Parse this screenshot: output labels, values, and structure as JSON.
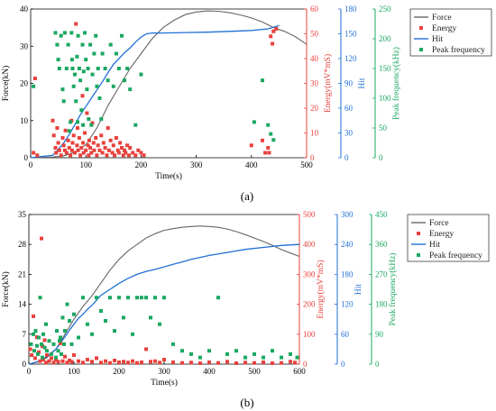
{
  "colors": {
    "force": "#666666",
    "energy": "#e8413c",
    "hit": "#1f6fd6",
    "peak": "#1aa860",
    "axis": "#000000"
  },
  "legend_labels": [
    "Force",
    "Energy",
    "Hit",
    "Peak frequency"
  ],
  "chart_data": [
    {
      "type": "scatter",
      "panel_label": "(a)",
      "xlabel": "Time(s)",
      "xlim": [
        0,
        500
      ],
      "xticks": [
        0,
        100,
        200,
        300,
        400,
        500
      ],
      "axes": {
        "force": {
          "label": "Force(kN)",
          "lim": [
            0,
            40
          ],
          "ticks": [
            0,
            10,
            20,
            30,
            40
          ]
        },
        "energy": {
          "label": "Energy(mV*mS)",
          "lim": [
            0,
            60
          ],
          "ticks": [
            0,
            10,
            20,
            30,
            40,
            50,
            60
          ]
        },
        "hit": {
          "label": "Hit",
          "lim": [
            0,
            180
          ],
          "ticks": [
            0,
            30,
            60,
            90,
            120,
            150,
            180
          ]
        },
        "peak": {
          "label": "Peak frequency(kHz)",
          "lim": [
            0,
            250
          ],
          "ticks": [
            0,
            50,
            100,
            150,
            200,
            250
          ]
        }
      },
      "series": [
        {
          "name": "Force",
          "kind": "line",
          "axis": "force",
          "x": [
            0,
            40,
            60,
            80,
            100,
            120,
            140,
            160,
            180,
            200,
            220,
            240,
            260,
            280,
            300,
            320,
            340,
            360,
            380,
            400,
            420,
            440,
            460,
            480,
            500
          ],
          "y": [
            0,
            0.2,
            0.5,
            1.5,
            3.5,
            8,
            14,
            19,
            24,
            28,
            32,
            35,
            37,
            38.5,
            39.2,
            39.5,
            39.4,
            39,
            38.4,
            37.6,
            36.5,
            35,
            34,
            32.5,
            30.5
          ]
        },
        {
          "name": "Hit",
          "kind": "line",
          "axis": "hit",
          "x": [
            0,
            40,
            50,
            60,
            70,
            80,
            90,
            100,
            110,
            120,
            130,
            140,
            150,
            160,
            170,
            180,
            190,
            200,
            210,
            220,
            240,
            280,
            320,
            360,
            400,
            430,
            440,
            450
          ],
          "y": [
            0,
            3,
            10,
            18,
            28,
            40,
            52,
            62,
            72,
            82,
            92,
            103,
            113,
            120,
            127,
            133,
            140,
            146,
            150,
            151,
            151,
            151.5,
            152,
            153,
            154,
            156,
            158,
            160
          ]
        },
        {
          "name": "Energy",
          "kind": "scatter",
          "axis": "energy",
          "x": [
            5,
            8,
            12,
            40,
            42,
            45,
            46,
            48,
            50,
            52,
            55,
            58,
            60,
            62,
            63,
            65,
            68,
            70,
            72,
            74,
            75,
            76,
            78,
            80,
            82,
            84,
            85,
            86,
            88,
            90,
            92,
            94,
            95,
            96,
            98,
            100,
            102,
            104,
            105,
            106,
            108,
            110,
            112,
            114,
            115,
            118,
            120,
            122,
            125,
            128,
            130,
            132,
            135,
            138,
            140,
            142,
            145,
            148,
            150,
            152,
            155,
            158,
            160,
            162,
            165,
            168,
            170,
            172,
            175,
            178,
            180,
            185,
            190,
            195,
            200,
            205,
            400,
            420,
            425,
            430,
            432,
            435,
            438,
            440,
            445
          ],
          "y": [
            2,
            32,
            1,
            15,
            9,
            4,
            2,
            12,
            6,
            3,
            1,
            8,
            5,
            3,
            11,
            2,
            7,
            4,
            1,
            15,
            3,
            6,
            9,
            2,
            54,
            5,
            12,
            3,
            8,
            1,
            4,
            25,
            6,
            2,
            10,
            3,
            18,
            5,
            1,
            7,
            4,
            2,
            14,
            6,
            3,
            8,
            1,
            5,
            3,
            9,
            2,
            6,
            4,
            1,
            12,
            3,
            7,
            2,
            5,
            1,
            8,
            3,
            2,
            6,
            4,
            1,
            3,
            2,
            5,
            1,
            4,
            2,
            1,
            3,
            2,
            1,
            5,
            7,
            2,
            4,
            2,
            49,
            46,
            51,
            52
          ]
        },
        {
          "name": "Peak frequency",
          "kind": "scatter",
          "axis": "peak",
          "x": [
            5,
            45,
            48,
            50,
            52,
            55,
            58,
            60,
            62,
            65,
            68,
            70,
            72,
            74,
            75,
            76,
            78,
            80,
            82,
            84,
            85,
            86,
            88,
            90,
            92,
            94,
            95,
            96,
            98,
            100,
            102,
            104,
            105,
            108,
            110,
            112,
            115,
            118,
            120,
            122,
            125,
            128,
            130,
            135,
            140,
            145,
            150,
            155,
            160,
            165,
            170,
            175,
            180,
            190,
            200,
            405,
            420,
            430,
            435,
            440
          ],
          "y": [
            120,
            210,
            190,
            165,
            150,
            205,
            115,
            95,
            210,
            150,
            190,
            45,
            60,
            210,
            165,
            150,
            120,
            140,
            95,
            170,
            60,
            205,
            150,
            130,
            80,
            190,
            55,
            145,
            210,
            165,
            115,
            150,
            65,
            190,
            55,
            140,
            175,
            205,
            120,
            150,
            100,
            65,
            175,
            150,
            130,
            190,
            120,
            175,
            150,
            205,
            130,
            150,
            115,
            55,
            140,
            60,
            130,
            55,
            40,
            30
          ]
        }
      ]
    },
    {
      "type": "scatter",
      "panel_label": "(b)",
      "xlabel": "Time(s)",
      "xlim": [
        0,
        600
      ],
      "xticks": [
        0,
        100,
        200,
        300,
        400,
        500,
        600
      ],
      "axes": {
        "force": {
          "label": "Force(kN)",
          "lim": [
            0,
            35
          ],
          "ticks": [
            0,
            7,
            14,
            21,
            28,
            35
          ]
        },
        "energy": {
          "label": "Energy(mV*mS)",
          "lim": [
            0,
            500
          ],
          "ticks": [
            0,
            100,
            200,
            300,
            400,
            500
          ]
        },
        "hit": {
          "label": "Hit",
          "lim": [
            0,
            300
          ],
          "ticks": [
            0,
            60,
            120,
            180,
            240,
            300
          ]
        },
        "peak": {
          "label": "Peak frequency(kHz)",
          "lim": [
            0,
            450
          ],
          "ticks": [
            0,
            90,
            180,
            270,
            360,
            450
          ]
        }
      },
      "series": [
        {
          "name": "Force",
          "kind": "line",
          "axis": "force",
          "x": [
            0,
            20,
            40,
            60,
            80,
            100,
            120,
            140,
            160,
            180,
            200,
            220,
            240,
            260,
            280,
            300,
            320,
            340,
            360,
            380,
            400,
            420,
            440,
            460,
            480,
            500,
            520,
            540,
            560,
            580,
            600
          ],
          "y": [
            0,
            0.5,
            1.5,
            3.5,
            7,
            10.5,
            13.5,
            16,
            19,
            22,
            24.5,
            26.5,
            28,
            29.5,
            30.5,
            31.3,
            31.7,
            32,
            32.2,
            32.3,
            32.2,
            32,
            31.6,
            31,
            30.3,
            29.5,
            28.7,
            27.8,
            26.8,
            26,
            25.2
          ]
        },
        {
          "name": "Hit",
          "kind": "line",
          "axis": "hit",
          "x": [
            0,
            20,
            40,
            60,
            70,
            80,
            90,
            100,
            110,
            120,
            130,
            140,
            150,
            160,
            180,
            200,
            220,
            240,
            260,
            280,
            300,
            320,
            340,
            360,
            380,
            400,
            440,
            480,
            520,
            560,
            600
          ],
          "y": [
            0,
            5,
            15,
            30,
            42,
            55,
            68,
            80,
            92,
            100,
            110,
            118,
            128,
            138,
            150,
            162,
            172,
            180,
            186,
            190,
            195,
            200,
            205,
            210,
            214,
            218,
            224,
            230,
            234,
            238,
            240
          ]
        },
        {
          "name": "Energy",
          "kind": "scatter",
          "axis": "energy",
          "x": [
            3,
            6,
            10,
            14,
            18,
            22,
            25,
            28,
            30,
            32,
            35,
            38,
            40,
            45,
            50,
            55,
            60,
            65,
            70,
            75,
            80,
            85,
            90,
            95,
            100,
            110,
            120,
            130,
            140,
            150,
            160,
            170,
            180,
            190,
            200,
            210,
            220,
            230,
            240,
            250,
            260,
            270,
            280,
            290,
            300,
            320,
            340,
            360,
            380,
            400,
            420,
            440,
            460,
            480,
            500,
            520,
            540,
            560,
            580,
            590
          ],
          "y": [
            50,
            30,
            160,
            20,
            90,
            40,
            10,
            420,
            60,
            15,
            80,
            5,
            30,
            10,
            20,
            5,
            15,
            8,
            70,
            10,
            25,
            5,
            12,
            8,
            30,
            10,
            5,
            15,
            8,
            20,
            5,
            10,
            4,
            12,
            6,
            8,
            5,
            10,
            4,
            6,
            50,
            8,
            10,
            5,
            15,
            6,
            4,
            5,
            3,
            6,
            4,
            8,
            3,
            5,
            4,
            6,
            3,
            4,
            8,
            5
          ]
        },
        {
          "name": "Peak frequency",
          "kind": "scatter",
          "axis": "peak",
          "x": [
            5,
            10,
            12,
            15,
            18,
            20,
            22,
            25,
            28,
            30,
            32,
            35,
            38,
            40,
            45,
            50,
            55,
            60,
            62,
            65,
            68,
            70,
            72,
            75,
            78,
            80,
            85,
            90,
            95,
            100,
            110,
            120,
            130,
            140,
            150,
            160,
            170,
            180,
            190,
            200,
            210,
            220,
            230,
            240,
            250,
            260,
            270,
            280,
            290,
            300,
            320,
            340,
            360,
            380,
            400,
            420,
            440,
            460,
            480,
            500,
            520,
            540,
            560,
            580,
            595
          ],
          "y": [
            60,
            90,
            40,
            100,
            55,
            30,
            80,
            200,
            60,
            20,
            90,
            50,
            120,
            40,
            70,
            30,
            60,
            20,
            100,
            40,
            70,
            80,
            30,
            140,
            60,
            100,
            180,
            130,
            60,
            150,
            80,
            200,
            120,
            90,
            200,
            160,
            130,
            200,
            100,
            200,
            140,
            200,
            90,
            200,
            200,
            200,
            140,
            200,
            120,
            200,
            60,
            40,
            30,
            20,
            40,
            200,
            30,
            40,
            20,
            30,
            20,
            40,
            20,
            30,
            20
          ]
        }
      ]
    }
  ]
}
